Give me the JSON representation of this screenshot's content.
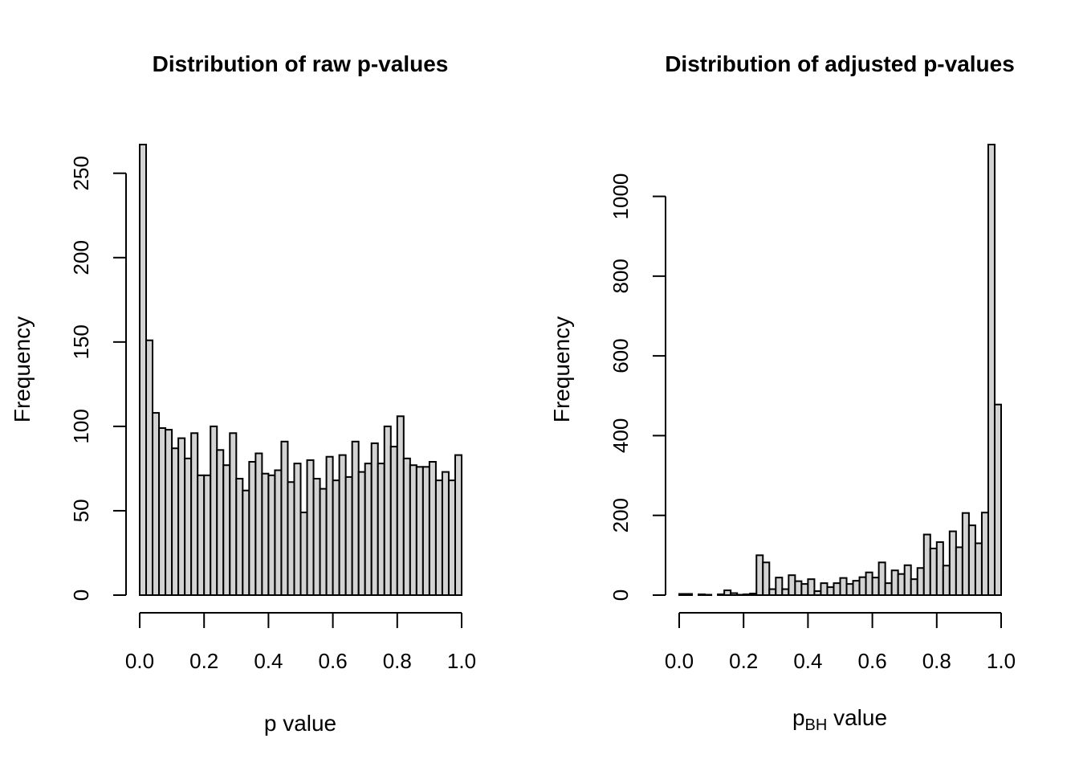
{
  "chart_data": [
    {
      "type": "bar",
      "title": "Distribution of raw p-values",
      "xlabel": "p value",
      "xlabel_sub": "",
      "xlabel_suffix": "",
      "ylabel": "Frequency",
      "xlim": [
        0,
        1
      ],
      "ylim": [
        0,
        267
      ],
      "x_ticks": [
        "0.0",
        "0.2",
        "0.4",
        "0.6",
        "0.8",
        "1.0"
      ],
      "y_ticks": [
        "0",
        "50",
        "100",
        "150",
        "200",
        "250"
      ],
      "bin_width": 0.02,
      "values": [
        267,
        151,
        108,
        99,
        98,
        87,
        93,
        81,
        96,
        71,
        71,
        100,
        86,
        77,
        96,
        69,
        62,
        79,
        84,
        72,
        71,
        74,
        91,
        67,
        78,
        49,
        80,
        69,
        63,
        82,
        68,
        83,
        70,
        91,
        73,
        78,
        90,
        78,
        100,
        88,
        106,
        81,
        77,
        76,
        76,
        79,
        68,
        73,
        68,
        83
      ],
      "bar_color": "#d3d3d3",
      "grid": false
    },
    {
      "type": "bar",
      "title": "Distribution of adjusted p-values",
      "xlabel": "p",
      "xlabel_sub": "BH",
      "xlabel_suffix": " value",
      "ylabel": "Frequency",
      "xlim": [
        0,
        1
      ],
      "ylim": [
        0,
        1130
      ],
      "x_ticks": [
        "0.0",
        "0.2",
        "0.4",
        "0.6",
        "0.8",
        "1.0"
      ],
      "y_ticks": [
        "0",
        "200",
        "400",
        "600",
        "800",
        "1000"
      ],
      "bin_width": 0.02,
      "values": [
        3,
        3,
        0,
        2,
        1,
        0,
        2,
        12,
        5,
        1,
        2,
        4,
        100,
        82,
        15,
        44,
        15,
        50,
        35,
        28,
        40,
        10,
        30,
        20,
        30,
        43,
        28,
        36,
        45,
        57,
        44,
        82,
        30,
        62,
        53,
        75,
        40,
        68,
        152,
        117,
        133,
        74,
        160,
        120,
        206,
        175,
        130,
        207,
        1130,
        478
      ],
      "bar_color": "#d3d3d3",
      "grid": false
    }
  ]
}
